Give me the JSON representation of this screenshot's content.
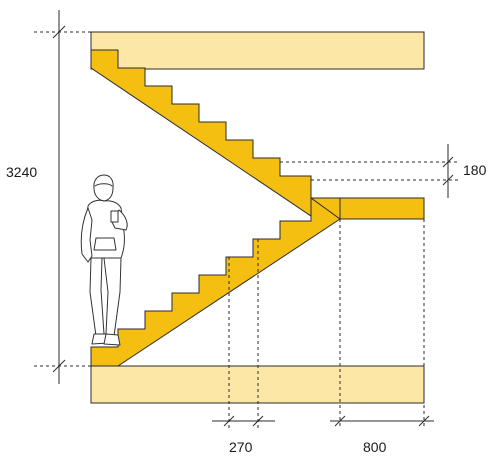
{
  "diagram": {
    "kind": "staircase-section-elevation",
    "colors": {
      "slab_fill": "#FCE7A6",
      "slab_stroke": "#2b2b2b",
      "stair_fill": "#F5BF12",
      "stair_stroke": "#2b2b2b",
      "dimension_line": "#2b2b2b",
      "figure_stroke": "#333333",
      "text": "#1a1a1a"
    },
    "dimensions": {
      "total_height": "3240",
      "riser_height": "180",
      "tread_depth": "270",
      "landing_depth": "800"
    },
    "figure": {
      "icon": "standing-person-icon"
    }
  }
}
